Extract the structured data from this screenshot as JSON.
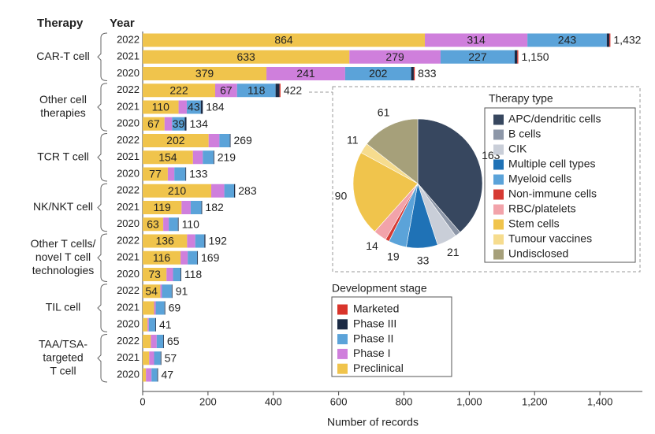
{
  "chart_data": [
    {
      "type": "bar",
      "x_label": "Number of records",
      "row_header": "Therapy",
      "year_header": "Year",
      "legend_title": "Development stage",
      "groups": [
        [
          "CAR-T cell"
        ],
        [
          "Other cell",
          "therapies"
        ],
        [
          "TCR T cell"
        ],
        [
          "NK/NKT cell"
        ],
        [
          "Other T cells/",
          "novel T cell",
          "technologies"
        ],
        [
          "TIL cell"
        ],
        [
          "TAA/TSA-",
          "targeted",
          "T cell"
        ]
      ],
      "categories": [
        "2022",
        "2021",
        "2020",
        "2022",
        "2021",
        "2020",
        "2022",
        "2021",
        "2020",
        "2022",
        "2021",
        "2020",
        "2022",
        "2021",
        "2020",
        "2022",
        "2021",
        "2020",
        "2022",
        "2021",
        "2020"
      ],
      "series": [
        {
          "name": "Preclinical",
          "color": "#f0c44c",
          "values": [
            864,
            633,
            379,
            222,
            110,
            67,
            202,
            154,
            77,
            210,
            119,
            63,
            136,
            116,
            73,
            54,
            35,
            15,
            25,
            20,
            10
          ],
          "value_labels": [
            "864",
            "633",
            "379",
            "222",
            "110",
            "67",
            "202",
            "154",
            "77",
            "210",
            "119",
            "63",
            "136",
            "116",
            "73",
            "54",
            null,
            null,
            null,
            null,
            null
          ]
        },
        {
          "name": "Phase I",
          "color": "#cf7fdc",
          "values": [
            314,
            279,
            241,
            67,
            25,
            23,
            33,
            30,
            20,
            40,
            28,
            17,
            25,
            22,
            20,
            5,
            5,
            4,
            18,
            15,
            17
          ],
          "value_labels": [
            "314",
            "279",
            "241",
            "67",
            null,
            null,
            null,
            null,
            null,
            null,
            null,
            null,
            null,
            null,
            null,
            null,
            null,
            null,
            null,
            null,
            null
          ]
        },
        {
          "name": "Phase II",
          "color": "#5ba3d9",
          "values": [
            243,
            227,
            202,
            118,
            43,
            39,
            32,
            33,
            34,
            30,
            33,
            28,
            28,
            29,
            23,
            30,
            27,
            20,
            20,
            20,
            18
          ],
          "value_labels": [
            "243",
            "227",
            "202",
            "118",
            "43",
            "39",
            null,
            null,
            null,
            null,
            null,
            null,
            null,
            null,
            null,
            null,
            null,
            null,
            null,
            null,
            null
          ]
        },
        {
          "name": "Phase III",
          "color": "#1b2a44",
          "values": [
            8,
            8,
            8,
            12,
            6,
            5,
            2,
            2,
            2,
            3,
            2,
            2,
            3,
            2,
            2,
            2,
            2,
            2,
            2,
            2,
            2
          ]
        },
        {
          "name": "Marketed",
          "color": "#d9342b",
          "values": [
            3,
            3,
            3,
            3,
            0,
            0,
            0,
            0,
            0,
            0,
            0,
            0,
            0,
            0,
            0,
            0,
            0,
            0,
            0,
            0,
            0
          ]
        }
      ],
      "totals": [
        1432,
        1150,
        833,
        422,
        184,
        134,
        269,
        219,
        133,
        283,
        182,
        110,
        192,
        169,
        118,
        91,
        69,
        41,
        65,
        57,
        47
      ],
      "total_labels": [
        "1,432",
        "1,150",
        "833",
        "422",
        "184",
        "134",
        "269",
        "219",
        "133",
        "283",
        "182",
        "110",
        "192",
        "169",
        "118",
        "91",
        "69",
        "41",
        "65",
        "57",
        "47"
      ],
      "xlim": [
        0,
        1530
      ],
      "xticks": [
        0,
        200,
        400,
        600,
        800,
        {
          "value": 1000,
          "label": "1,000"
        },
        {
          "value": 1200,
          "label": "1,200"
        },
        {
          "value": 1400,
          "label": "1,400"
        }
      ]
    },
    {
      "type": "pie",
      "legend_title": "Therapy type",
      "categories": [
        "APC/dendritic cells",
        "B cells",
        "CIK",
        "Multiple cell types",
        "Myeloid cells",
        "Non-immune cells",
        "RBC/platelets",
        "Stem cells",
        "Tumour vaccines",
        "Undisclosed"
      ],
      "colors": [
        "#37475f",
        "#8d97a8",
        "#c9ced8",
        "#1f72b6",
        "#5ba3d9",
        "#d63a33",
        "#f2a3aa",
        "#f0c44c",
        "#f6dc8e",
        "#a6a07a"
      ],
      "values": [
        163,
        6,
        21,
        33,
        19,
        4,
        14,
        90,
        11,
        61
      ],
      "value_labels": [
        "163",
        null,
        "21",
        "33",
        "19",
        null,
        "14",
        "90",
        "11",
        "61"
      ]
    }
  ]
}
